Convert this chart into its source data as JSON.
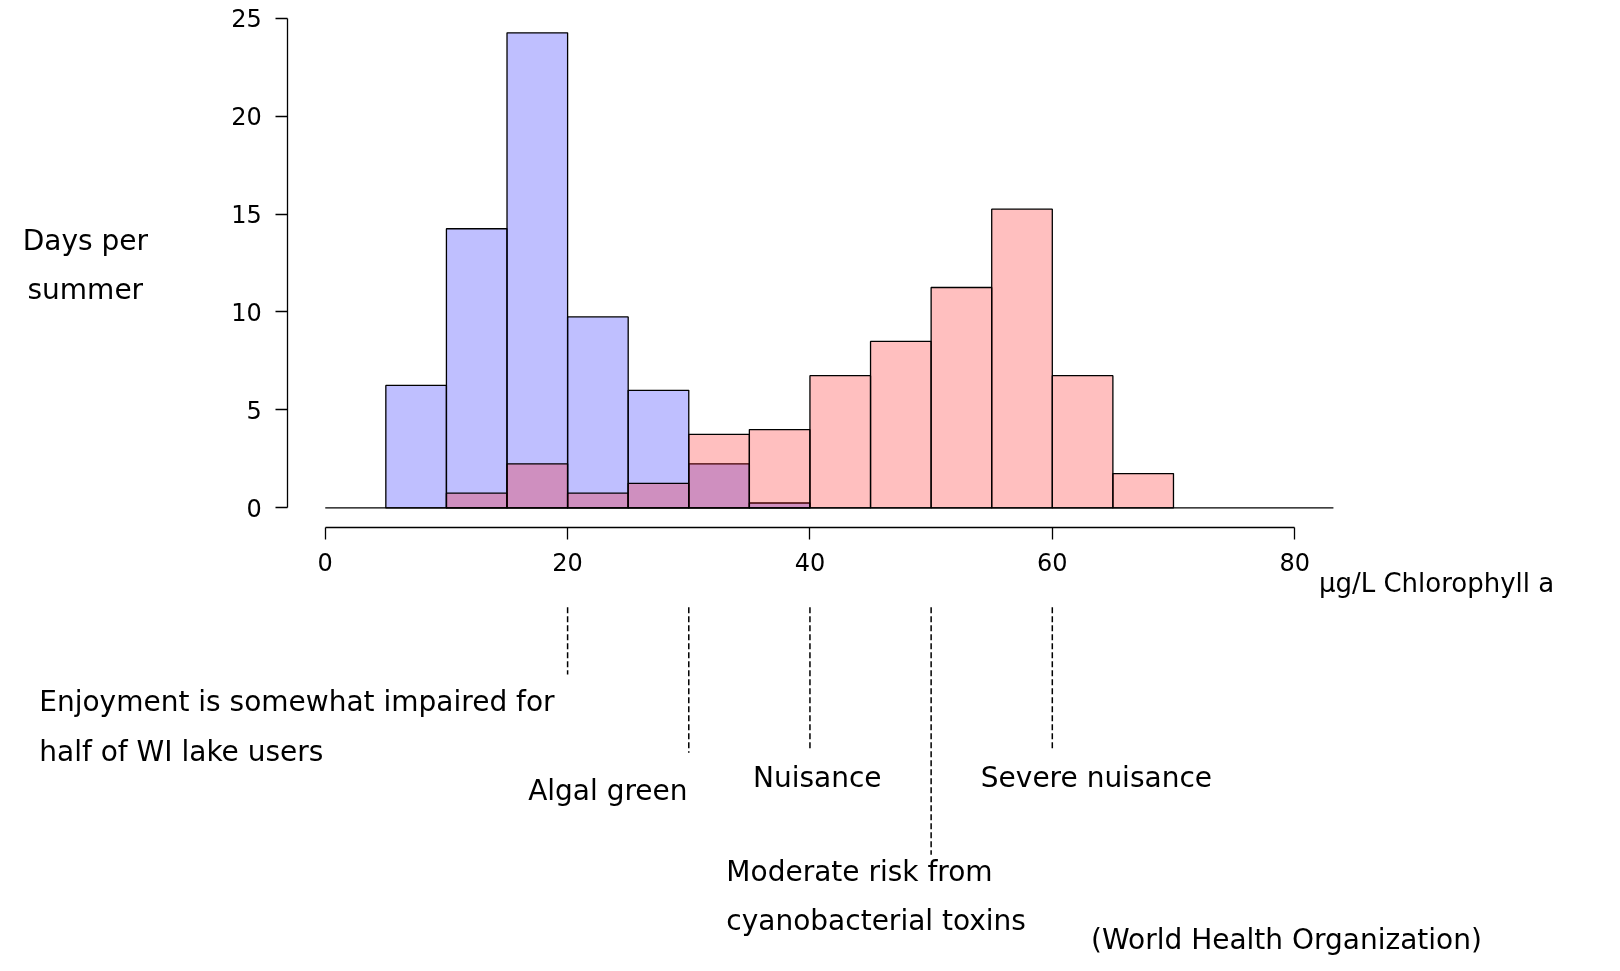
{
  "chart_data": {
    "type": "histogram",
    "ylabel": "Days per\nsummer",
    "xlabel": "µg/L Chlorophyll a",
    "bins": [
      5,
      10,
      15,
      20,
      25,
      30,
      35,
      40,
      45,
      50,
      55,
      60,
      65,
      70
    ],
    "series": [
      {
        "color": "#bfbfff",
        "values": [
          6.25,
          14.25,
          24.25,
          9.75,
          6,
          2.25,
          0.25,
          0,
          0,
          0,
          0,
          0,
          0
        ]
      },
      {
        "color": "#ffbfbf",
        "values": [
          0,
          0.75,
          2.25,
          0.75,
          1.25,
          3.75,
          4,
          6.75,
          8.5,
          11.25,
          15.25,
          6.75,
          1.75
        ]
      }
    ],
    "xlim": [
      0,
      80
    ],
    "xticks": [
      0,
      20,
      40,
      60,
      80
    ],
    "ylim": [
      0,
      25
    ],
    "yticks": [
      0,
      5,
      10,
      15,
      20,
      25
    ],
    "grid": false,
    "ref_lines": [
      {
        "axis": "y",
        "value": 0,
        "label": null,
        "line_style": "solid"
      },
      {
        "axis": "x",
        "value": 20,
        "label": "Enjoyment is somewhat impaired for\nhalf of WI lake users",
        "line_style": "dashed"
      },
      {
        "axis": "x",
        "value": 30,
        "label": "Algal green",
        "line_style": "dashed"
      },
      {
        "axis": "x",
        "value": 40,
        "label": "Nuisance",
        "line_style": "dashed"
      },
      {
        "axis": "x",
        "value": 50,
        "label": "Moderate risk from\ncyanobacterial toxins",
        "line_style": "dashed"
      },
      {
        "axis": "x",
        "value": 60,
        "label": "Severe nuisance",
        "line_style": "dashed"
      }
    ],
    "annotations": [
      "(World Health Organization)"
    ]
  }
}
